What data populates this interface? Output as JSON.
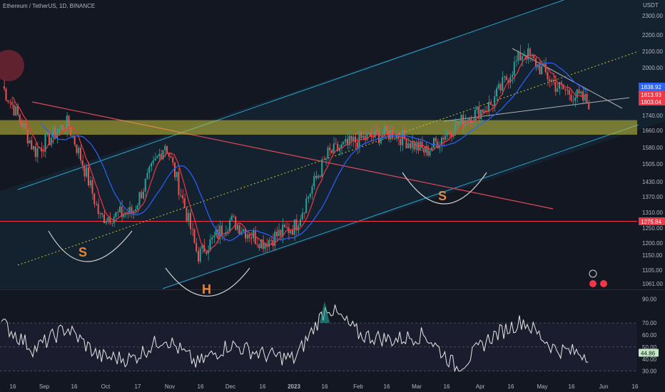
{
  "header": {
    "title": "Ethereum / TetherUS, 1D, BINANCE"
  },
  "price_axis": {
    "unit": "USDT"
  },
  "colors": {
    "background": "#131722",
    "channel": "#26a6d1",
    "downtrend": "#e04a5a",
    "support_band": "#c9c53a",
    "ma_fast": "#f23645",
    "ma_slow": "#2962ff",
    "candle_up": "#26a69a",
    "candle_down": "#ef5350",
    "rsi_line": "#e8e8e8",
    "hline": "#f23645"
  },
  "badges": [
    {
      "label": "1838.92",
      "color": "#2962ff"
    },
    {
      "label": "1813.93",
      "color": "#f23645"
    },
    {
      "label": "1803.04",
      "color": "#f23645"
    },
    {
      "label": "1275.84",
      "color": "#f23645"
    }
  ],
  "rsi_badge": {
    "label": "44.86"
  },
  "annotations": [
    {
      "text": "S"
    },
    {
      "text": "S"
    },
    {
      "text": "H"
    }
  ],
  "chart_data": [
    {
      "type": "candlestick",
      "title": "Ethereum / TetherUS, 1D, BINANCE",
      "y_ticks": [
        "2300.00",
        "2200.00",
        "2100.00",
        "2000.00",
        "1813.93",
        "1740.00",
        "1660.00",
        "1580.00",
        "1505.00",
        "1430.00",
        "1370.00",
        "1310.00",
        "1250.00",
        "1200.00",
        "1150.00",
        "1105.00",
        "1061.00"
      ],
      "x_ticks": [
        "16",
        "Sep",
        "16",
        "Oct",
        "17",
        "Nov",
        "16",
        "Dec",
        "16",
        "2023",
        "16",
        "Feb",
        "16",
        "Mar",
        "16",
        "Apr",
        "16",
        "May",
        "16",
        "Jun",
        "16"
      ],
      "ylim": [
        1040,
        2360
      ],
      "horizontal_level": 1275.84,
      "support_zone": [
        1640,
        1715
      ],
      "series": [
        {
          "name": "",
          "x": [
            "16",
            "Sep",
            "16",
            "Oct",
            "17",
            "Nov",
            "16",
            "Dec",
            "16",
            "2023",
            "16",
            "Feb",
            "16",
            "Mar",
            "16",
            "Apr",
            "16",
            "May",
            "16"
          ],
          "close": [
            1900,
            1560,
            1700,
            1290,
            1310,
            1600,
            1150,
            1280,
            1200,
            1260,
            1550,
            1620,
            1650,
            1560,
            1700,
            1800,
            2100,
            1900,
            1810
          ]
        }
      ]
    },
    {
      "type": "line",
      "title": "RSI",
      "y_ticks": [
        "90.00",
        "70.00",
        "60.00",
        "50.00",
        "40.00",
        "30.00"
      ],
      "ylim": [
        28,
        92
      ],
      "series": [
        {
          "name": "",
          "values": [
            70,
            48,
            66,
            42,
            40,
            58,
            36,
            52,
            44,
            40,
            84,
            60,
            56,
            60,
            32,
            58,
            72,
            48,
            44
          ]
        }
      ]
    }
  ]
}
